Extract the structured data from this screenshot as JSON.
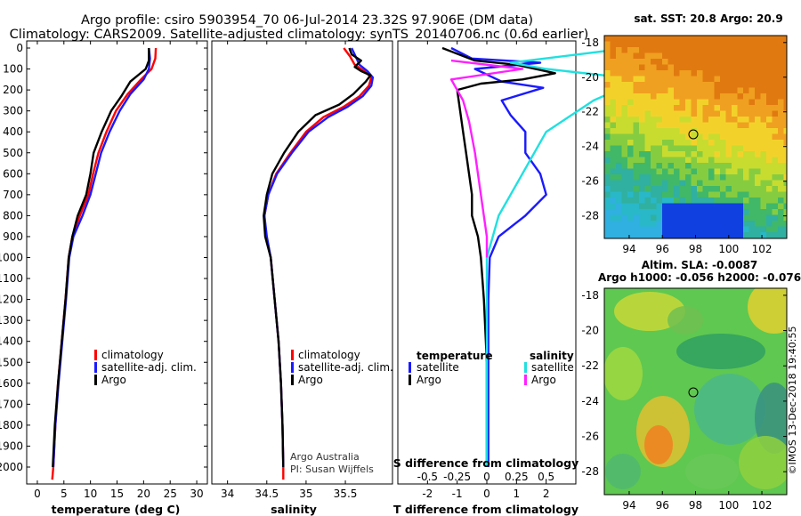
{
  "title_line1": "Argo profile: csiro 5903954_70 06-Jul-2014 23.32S 97.906E (DM data)",
  "title_line2": "Climatology: CARS2009. Satellite-adjusted climatology: synTS_20140706.nc (0.6d earlier)",
  "colors": {
    "climatology": "#ff0000",
    "satellite": "#1a1aff",
    "argo": "#000000",
    "sat_salinity": "#20e0e0",
    "argo_salinity": "#ff20ff"
  },
  "chart_data": [
    {
      "id": "temperature",
      "type": "line",
      "xlabel": "temperature (deg C)",
      "ylabel": "",
      "xlim": [
        -2,
        32
      ],
      "ylim": [
        2100,
        0
      ],
      "xticks": [
        "0",
        "5",
        "10",
        "15",
        "20",
        "25",
        "30"
      ],
      "yticks": [
        "0",
        "100",
        "200",
        "300",
        "400",
        "500",
        "600",
        "700",
        "800",
        "900",
        "1000",
        "1100",
        "1200",
        "1300",
        "1400",
        "1500",
        "1600",
        "1700",
        "1800",
        "1900",
        "2000"
      ],
      "legend": [
        "climatology",
        "satellite-adj. clim.",
        "Argo"
      ],
      "series": [
        {
          "name": "climatology",
          "color": "#ff0000",
          "points": [
            [
              22.3,
              0
            ],
            [
              22.2,
              50
            ],
            [
              21.5,
              100
            ],
            [
              19.5,
              150
            ],
            [
              17.0,
              220
            ],
            [
              14.8,
              300
            ],
            [
              13.0,
              400
            ],
            [
              11.5,
              500
            ],
            [
              10.5,
              600
            ],
            [
              9.6,
              700
            ],
            [
              8.0,
              800
            ],
            [
              6.6,
              900
            ],
            [
              5.9,
              1000
            ],
            [
              5.3,
              1200
            ],
            [
              4.6,
              1400
            ],
            [
              3.9,
              1600
            ],
            [
              3.4,
              1800
            ],
            [
              3.0,
              2000
            ],
            [
              2.8,
              2060
            ]
          ]
        },
        {
          "name": "satellite-adj. clim.",
          "color": "#1a1aff",
          "points": [
            [
              21.0,
              0
            ],
            [
              21.2,
              50
            ],
            [
              21.0,
              100
            ],
            [
              20.0,
              150
            ],
            [
              17.5,
              220
            ],
            [
              15.5,
              300
            ],
            [
              13.6,
              400
            ],
            [
              12.0,
              500
            ],
            [
              11.0,
              600
            ],
            [
              10.0,
              700
            ],
            [
              8.5,
              800
            ],
            [
              6.8,
              900
            ],
            [
              6.0,
              1000
            ],
            [
              5.4,
              1200
            ],
            [
              4.7,
              1400
            ],
            [
              4.0,
              1600
            ],
            [
              3.4,
              1800
            ],
            [
              3.0,
              2000
            ]
          ]
        },
        {
          "name": "Argo",
          "color": "#000000",
          "points": [
            [
              21.0,
              0
            ],
            [
              21.0,
              60
            ],
            [
              20.4,
              100
            ],
            [
              17.5,
              160
            ],
            [
              15.8,
              230
            ],
            [
              13.9,
              300
            ],
            [
              12.1,
              400
            ],
            [
              10.6,
              500
            ],
            [
              10.0,
              600
            ],
            [
              9.2,
              700
            ],
            [
              7.6,
              800
            ],
            [
              6.6,
              900
            ],
            [
              5.9,
              1000
            ],
            [
              5.3,
              1200
            ],
            [
              4.6,
              1400
            ],
            [
              3.9,
              1600
            ],
            [
              3.3,
              1800
            ],
            [
              2.9,
              2000
            ]
          ]
        }
      ]
    },
    {
      "id": "salinity",
      "type": "line",
      "xlabel": "salinity",
      "ylabel": "",
      "xlim": [
        33.8,
        36.1
      ],
      "ylim": [
        2100,
        0
      ],
      "xticks": [
        "34",
        "34.5",
        "35",
        "35.5"
      ],
      "legend": [
        "climatology",
        "satellite-adj. clim.",
        "Argo"
      ],
      "annotations": [
        "Argo Australia",
        "PI: Susan Wijffels"
      ],
      "series": [
        {
          "name": "climatology",
          "color": "#ff0000",
          "points": [
            [
              35.48,
              0
            ],
            [
              35.56,
              40
            ],
            [
              35.62,
              80
            ],
            [
              35.74,
              110
            ],
            [
              35.83,
              140
            ],
            [
              35.8,
              180
            ],
            [
              35.68,
              230
            ],
            [
              35.48,
              280
            ],
            [
              35.22,
              330
            ],
            [
              35.0,
              400
            ],
            [
              34.8,
              500
            ],
            [
              34.62,
              600
            ],
            [
              34.52,
              700
            ],
            [
              34.47,
              800
            ],
            [
              34.49,
              900
            ],
            [
              34.55,
              1000
            ],
            [
              34.6,
              1200
            ],
            [
              34.65,
              1400
            ],
            [
              34.68,
              1600
            ],
            [
              34.7,
              1800
            ],
            [
              34.71,
              2000
            ],
            [
              34.71,
              2060
            ]
          ]
        },
        {
          "name": "satellite-adj. clim.",
          "color": "#1a1aff",
          "points": [
            [
              35.58,
              0
            ],
            [
              35.63,
              40
            ],
            [
              35.68,
              80
            ],
            [
              35.78,
              110
            ],
            [
              35.85,
              140
            ],
            [
              35.83,
              180
            ],
            [
              35.72,
              230
            ],
            [
              35.53,
              280
            ],
            [
              35.28,
              330
            ],
            [
              35.03,
              400
            ],
            [
              34.82,
              500
            ],
            [
              34.63,
              600
            ],
            [
              34.52,
              700
            ],
            [
              34.47,
              800
            ],
            [
              34.5,
              900
            ],
            [
              34.55,
              1000
            ],
            [
              34.6,
              1200
            ],
            [
              34.65,
              1400
            ],
            [
              34.68,
              1600
            ],
            [
              34.7,
              1800
            ],
            [
              34.71,
              2000
            ]
          ]
        },
        {
          "name": "Argo",
          "color": "#000000",
          "points": [
            [
              35.55,
              0
            ],
            [
              35.58,
              30
            ],
            [
              35.7,
              60
            ],
            [
              35.62,
              90
            ],
            [
              35.7,
              110
            ],
            [
              35.82,
              130
            ],
            [
              35.76,
              160
            ],
            [
              35.6,
              220
            ],
            [
              35.42,
              270
            ],
            [
              35.12,
              320
            ],
            [
              34.9,
              400
            ],
            [
              34.72,
              500
            ],
            [
              34.57,
              600
            ],
            [
              34.5,
              700
            ],
            [
              34.46,
              800
            ],
            [
              34.48,
              900
            ],
            [
              34.55,
              1000
            ],
            [
              34.6,
              1200
            ],
            [
              34.65,
              1400
            ],
            [
              34.68,
              1600
            ],
            [
              34.7,
              1800
            ],
            [
              34.71,
              2000
            ]
          ]
        }
      ]
    },
    {
      "id": "difference",
      "type": "line",
      "xlabel": "T difference from climatology",
      "xlabel_top": "S difference from climatology",
      "xlim": [
        -3,
        3
      ],
      "ylim": [
        2100,
        0
      ],
      "xticks": [
        "-2",
        "-1",
        "0",
        "1",
        "2"
      ],
      "xticks_s": [
        "-0.5",
        "-0.25",
        "0",
        "0.25",
        "0.5"
      ],
      "legend_left_title": "temperature",
      "legend_right_title": "salinity",
      "legend_left": [
        "satellite",
        "Argo"
      ],
      "legend_right": [
        "satellite",
        "Argo"
      ],
      "series": [
        {
          "name": "satellite T",
          "color": "#1a1aff",
          "points": [
            [
              -1.2,
              0
            ],
            [
              -0.5,
              50
            ],
            [
              1.8,
              70
            ],
            [
              -0.4,
              100
            ],
            [
              0.5,
              160
            ],
            [
              1.9,
              190
            ],
            [
              0.5,
              250
            ],
            [
              0.8,
              320
            ],
            [
              1.3,
              400
            ],
            [
              1.3,
              500
            ],
            [
              1.8,
              600
            ],
            [
              2.0,
              700
            ],
            [
              1.3,
              800
            ],
            [
              0.4,
              900
            ],
            [
              0.1,
              1000
            ],
            [
              0.05,
              1200
            ],
            [
              0.05,
              1500
            ],
            [
              0.05,
              2000
            ]
          ]
        },
        {
          "name": "Argo T",
          "color": "#000000",
          "points": [
            [
              -1.5,
              0
            ],
            [
              -0.4,
              60
            ],
            [
              1.0,
              80
            ],
            [
              2.3,
              120
            ],
            [
              1.2,
              150
            ],
            [
              -0.2,
              170
            ],
            [
              -1.0,
              200
            ],
            [
              -0.9,
              300
            ],
            [
              -0.8,
              400
            ],
            [
              -0.7,
              500
            ],
            [
              -0.6,
              600
            ],
            [
              -0.5,
              700
            ],
            [
              -0.5,
              800
            ],
            [
              -0.3,
              900
            ],
            [
              -0.2,
              1000
            ],
            [
              -0.1,
              1200
            ],
            [
              0.0,
              1500
            ],
            [
              0.0,
              2000
            ]
          ]
        },
        {
          "name": "satellite S",
          "color": "#20e0e0",
          "points": [
            [
              1.2,
              0
            ],
            [
              0.2,
              70
            ],
            [
              0.5,
              100
            ],
            [
              1.3,
              150
            ],
            [
              0.9,
              250
            ],
            [
              0.5,
              400
            ],
            [
              0.3,
              600
            ],
            [
              0.2,
              700
            ],
            [
              0.1,
              800
            ],
            [
              0.05,
              900
            ],
            [
              0.0,
              1000
            ],
            [
              0.0,
              1200
            ],
            [
              0.0,
              2000
            ]
          ]
        },
        {
          "name": "Argo S",
          "color": "#ff20ff",
          "points": [
            [
              -0.3,
              60
            ],
            [
              0.3,
              100
            ],
            [
              -0.3,
              150
            ],
            [
              -0.2,
              250
            ],
            [
              -0.15,
              350
            ],
            [
              -0.1,
              500
            ],
            [
              -0.05,
              700
            ],
            [
              0.0,
              900
            ],
            [
              0.0,
              1000
            ]
          ]
        }
      ]
    },
    {
      "id": "sst_map",
      "type": "heatmap",
      "title": "sat. SST: 20.8 Argo: 20.9",
      "xticks": [
        "94",
        "96",
        "98",
        "100",
        "102"
      ],
      "yticks": [
        "-18",
        "-20",
        "-22",
        "-24",
        "-26",
        "-28"
      ],
      "xlim": [
        92.5,
        103.5
      ],
      "ylim": [
        -29.3,
        -17.6
      ],
      "marker": [
        97.9,
        -23.3
      ]
    },
    {
      "id": "sla_map",
      "type": "heatmap",
      "title": "Altim. SLA: -0.0087",
      "subtitle": "Argo h1000: -0.056 h2000: -0.076",
      "xticks": [
        "94",
        "96",
        "98",
        "100",
        "102"
      ],
      "yticks": [
        "-18",
        "-20",
        "-22",
        "-24",
        "-26",
        "-28"
      ],
      "xlim": [
        92.5,
        103.5
      ],
      "ylim": [
        -29.3,
        -17.6
      ],
      "marker": [
        97.9,
        -23.3
      ]
    }
  ],
  "credit": "©IMOS 13-Dec-2018 19:40:55"
}
